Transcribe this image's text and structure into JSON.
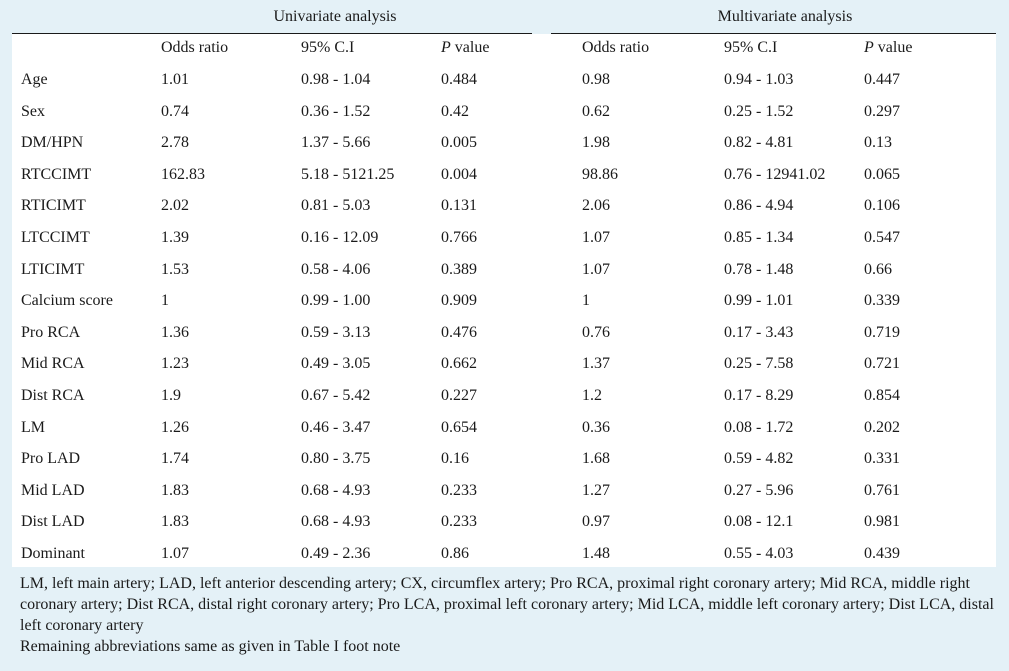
{
  "header": {
    "univariate_title": "Univariate analysis",
    "multivariate_title": "Multivariate analysis",
    "columns": {
      "odds_ratio": "Odds ratio",
      "ci": "95% C.I",
      "p_italic": "P",
      "p_rest": " value"
    }
  },
  "rows": [
    {
      "label": "Age",
      "u_or": "1.01",
      "u_ci": "0.98 - 1.04",
      "u_p": "0.484",
      "m_or": "0.98",
      "m_ci": "0.94 - 1.03",
      "m_p": "0.447"
    },
    {
      "label": "Sex",
      "u_or": "0.74",
      "u_ci": "0.36 - 1.52",
      "u_p": "0.42",
      "m_or": "0.62",
      "m_ci": "0.25 - 1.52",
      "m_p": "0.297"
    },
    {
      "label": "DM/HPN",
      "u_or": "2.78",
      "u_ci": "1.37 - 5.66",
      "u_p": "0.005",
      "m_or": "1.98",
      "m_ci": "0.82 - 4.81",
      "m_p": "0.13"
    },
    {
      "label": "RTCCIMT",
      "u_or": "162.83",
      "u_ci": "5.18 - 5121.25",
      "u_p": "0.004",
      "m_or": "98.86",
      "m_ci": "0.76 - 12941.02",
      "m_p": "0.065"
    },
    {
      "label": "RTICIMT",
      "u_or": "2.02",
      "u_ci": "0.81 - 5.03",
      "u_p": "0.131",
      "m_or": "2.06",
      "m_ci": "0.86 - 4.94",
      "m_p": "0.106"
    },
    {
      "label": "LTCCIMT",
      "u_or": "1.39",
      "u_ci": "0.16 - 12.09",
      "u_p": "0.766",
      "m_or": "1.07",
      "m_ci": "0.85 - 1.34",
      "m_p": "0.547"
    },
    {
      "label": "LTICIMT",
      "u_or": "1.53",
      "u_ci": "0.58 - 4.06",
      "u_p": "0.389",
      "m_or": "1.07",
      "m_ci": "0.78 - 1.48",
      "m_p": "0.66"
    },
    {
      "label": "Calcium score",
      "u_or": "1",
      "u_ci": "0.99 - 1.00",
      "u_p": "0.909",
      "m_or": "1",
      "m_ci": "0.99 - 1.01",
      "m_p": "0.339"
    },
    {
      "label": "Pro RCA",
      "u_or": "1.36",
      "u_ci": "0.59 - 3.13",
      "u_p": "0.476",
      "m_or": "0.76",
      "m_ci": "0.17 - 3.43",
      "m_p": "0.719"
    },
    {
      "label": "Mid RCA",
      "u_or": "1.23",
      "u_ci": "0.49 - 3.05",
      "u_p": "0.662",
      "m_or": "1.37",
      "m_ci": "0.25 - 7.58",
      "m_p": "0.721"
    },
    {
      "label": "Dist RCA",
      "u_or": "1.9",
      "u_ci": "0.67 - 5.42",
      "u_p": "0.227",
      "m_or": "1.2",
      "m_ci": "0.17 - 8.29",
      "m_p": "0.854"
    },
    {
      "label": "LM",
      "u_or": "1.26",
      "u_ci": "0.46 - 3.47",
      "u_p": "0.654",
      "m_or": "0.36",
      "m_ci": "0.08 - 1.72",
      "m_p": "0.202"
    },
    {
      "label": "Pro LAD",
      "u_or": "1.74",
      "u_ci": "0.80 - 3.75",
      "u_p": "0.16",
      "m_or": "1.68",
      "m_ci": "0.59 - 4.82",
      "m_p": "0.331"
    },
    {
      "label": "Mid LAD",
      "u_or": "1.83",
      "u_ci": "0.68 - 4.93",
      "u_p": "0.233",
      "m_or": "1.27",
      "m_ci": "0.27 - 5.96",
      "m_p": "0.761"
    },
    {
      "label": "Dist LAD",
      "u_or": "1.83",
      "u_ci": "0.68 - 4.93",
      "u_p": "0.233",
      "m_or": "0.97",
      "m_ci": "0.08 - 12.1",
      "m_p": "0.981"
    },
    {
      "label": "Dominant",
      "u_or": "1.07",
      "u_ci": "0.49 - 2.36",
      "u_p": "0.86",
      "m_or": "1.48",
      "m_ci": "0.55 - 4.03",
      "m_p": "0.439"
    }
  ],
  "footnotes": {
    "abbreviations": "LM, left main artery; LAD, left anterior descending artery; CX, circumflex artery; Pro RCA, proximal right coronary artery; Mid RCA, middle right coronary artery; Dist RCA, distal right coronary artery; Pro LCA, proximal left coronary artery; Mid LCA, middle left coronary artery; Dist LCA, distal left coronary artery",
    "remaining": "Remaining abbreviations same as given in Table I foot note"
  },
  "colors": {
    "background": "#e4f1f7",
    "panel": "#ffffff",
    "text": "#1a1a1a"
  }
}
